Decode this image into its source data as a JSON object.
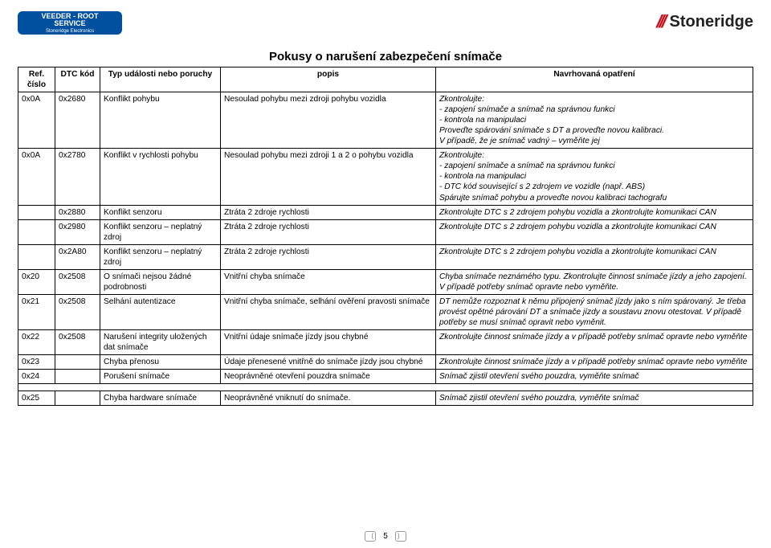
{
  "logo_left_top": "VEEDER - ROOT",
  "logo_left_mid": "SERVICE",
  "logo_left_bot": "Stoneridge Electronics",
  "logo_right": "Stoneridge",
  "title": "Pokusy o narušení zabezpečení snímače",
  "head": {
    "c1": "Ref. číslo",
    "c2": "DTC kód",
    "c3": "Typ události nebo poruchy",
    "c4": "popis",
    "c5": "Navrhovaná opatření"
  },
  "rows": [
    {
      "c1": "0x0A",
      "c2": "0x2680",
      "c3": "Konflikt pohybu",
      "c4": "Nesoulad pohybu mezi zdroji pohybu vozidla",
      "c5": "Zkontrolujte:\n- zapojení snímače a snímač na správnou funkci\n- kontrola na manipulaci\nProveďte spárování snímače s DT a proveďte novou kalibraci.\nV případě, že je snímač vadný – vyměňte jej",
      "c5it": true
    },
    {
      "c1": "0x0A",
      "c2": "0x2780",
      "c3": "Konflikt v rychlosti pohybu",
      "c4": "Nesoulad pohybu mezi zdroji 1 a 2 o pohybu vozidla",
      "c5": "Zkontrolujte:\n- zapojení snímače a snímač na správnou funkci\n- kontrola na manipulaci\n- DTC kód související s 2 zdrojem ve vozidle (např. ABS)\nSpárujte snímač pohybu a proveďte novou kalibraci tachografu",
      "c5it": true
    },
    {
      "c1": "",
      "c2": "0x2880",
      "c3": "Konflikt senzoru",
      "c4": "Ztráta 2 zdroje rychlosti",
      "c5": "Zkontrolujte DTC s 2 zdrojem pohybu vozidla a zkontrolujte komunikaci CAN",
      "c5it": true
    },
    {
      "c1": "",
      "c2": "0x2980",
      "c3": "Konflikt senzoru – neplatný zdroj",
      "c4": "Ztráta 2 zdroje rychlosti",
      "c5": "Zkontrolujte DTC s 2 zdrojem pohybu vozidla a zkontrolujte komunikaci CAN",
      "c5it": true
    },
    {
      "c1": "",
      "c2": "0x2A80",
      "c3": "Konflikt senzoru – neplatný zdroj",
      "c4": "Ztráta 2 zdroje rychlosti",
      "c5": "Zkontrolujte DTC s 2 zdrojem pohybu vozidla a zkontrolujte komunikaci CAN",
      "c5it": true
    },
    {
      "c1": "0x20",
      "c2": "0x2508",
      "c3": "O snímači nejsou žádné podrobnosti",
      "c4": "Vnitřní chyba snímače",
      "c5": "Chyba snímače neznámého typu. Zkontrolujte činnost snímače jízdy a jeho zapojení. V případě potřeby snímač opravte nebo vyměňte.",
      "c5it": true
    },
    {
      "c1": "0x21",
      "c2": "0x2508",
      "c3": "Selhání autentizace",
      "c4": "Vnitřní chyba snímače, selhání ověření pravosti snímače",
      "c5": "DT nemůže rozpoznat k němu připojený snímač jízdy jako s ním spárovaný. Je třeba provést opětné párování DT a snímače jízdy a soustavu znovu otestovat. V případě potřeby se musí snímač opravit nebo vyměnit.",
      "c5it": true
    },
    {
      "c1": "0x22",
      "c2": "0x2508",
      "c3": "Narušení integrity uložených dat snímače",
      "c4": "Vnitřní údaje snímače jízdy jsou chybné",
      "c5": "Zkontrolujte činnost snímače jízdy a v případě potřeby snímač opravte nebo vyměňte",
      "c5it": true
    },
    {
      "c1": "0x23",
      "c2": "",
      "c3": "Chyba přenosu",
      "c4": "Údaje přenesené vnitřně do snímače jízdy jsou chybné",
      "c5": "Zkontrolujte činnost snímače jízdy a v případě potřeby snímač opravte nebo vyměňte",
      "c5it": true
    },
    {
      "c1": "0x24",
      "c2": "",
      "c3": "Porušení snímače",
      "c4": "Neoprávněné otevření pouzdra snímače",
      "c5": "Snímač zjistil otevření svého pouzdra, vyměňte snímač",
      "c5it": true
    },
    {
      "gap": true
    },
    {
      "c1": "0x25",
      "c2": "",
      "c3": "Chyba hardware snímače",
      "c4": "Neoprávněné vniknutí do snímače.",
      "c5": "Snímač zjistil otevření svého pouzdra, vyměňte snímač",
      "c5it": true
    }
  ],
  "page_number": "5"
}
